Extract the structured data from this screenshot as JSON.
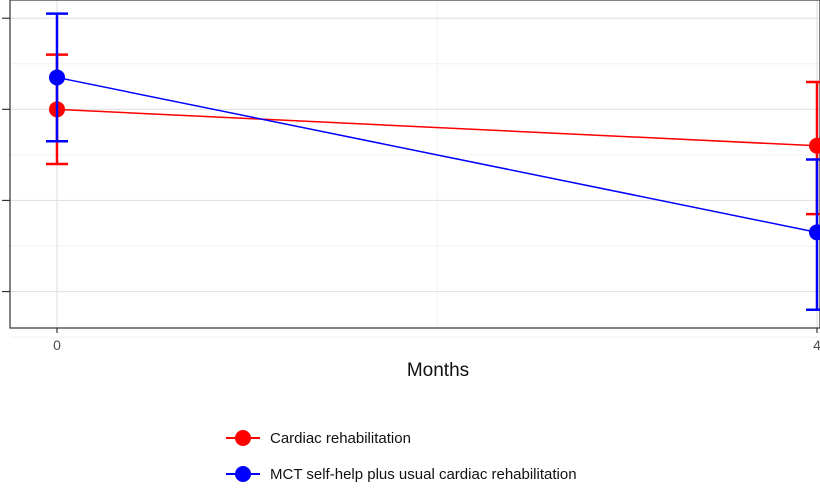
{
  "chart_data": {
    "type": "line",
    "title": "",
    "xlabel": "Months",
    "ylabel": "",
    "x": [
      0,
      4
    ],
    "x_ticks": [
      0,
      4
    ],
    "y_range": [
      -2.4,
      1.2
    ],
    "grid": true,
    "legend_position": "bottom",
    "series": [
      {
        "name": "Cardiac rehabilitation",
        "color": "#ff0000",
        "y": [
          0,
          -0.4
        ],
        "y_low": [
          -0.6,
          -1.15
        ],
        "y_high": [
          0.6,
          0.3
        ]
      },
      {
        "name": "MCT self-help plus usual cardiac rehabilitation",
        "color": "#0000ff",
        "y": [
          0.35,
          -1.35
        ],
        "y_low": [
          -0.35,
          -2.2
        ],
        "y_high": [
          1.05,
          -0.55
        ]
      }
    ]
  }
}
